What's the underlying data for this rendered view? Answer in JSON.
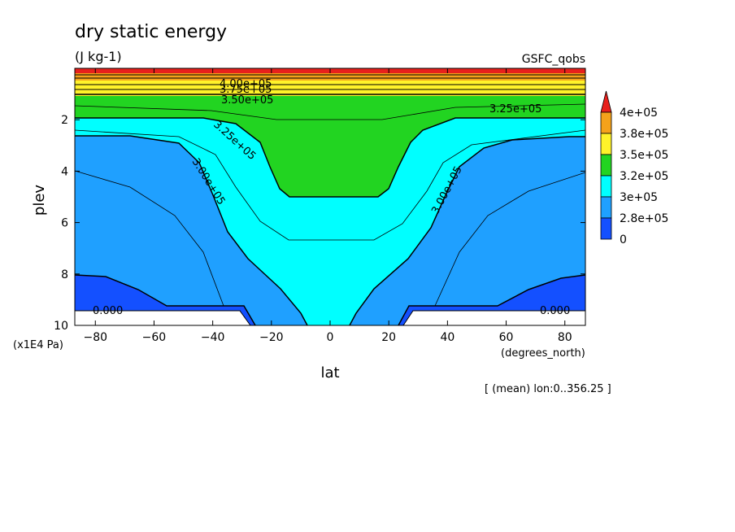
{
  "chart_data": {
    "type": "heatmap",
    "title": "dry static energy",
    "units": "(J kg-1)",
    "source": "GSFC_qobs",
    "xlabel": "lat",
    "xunits": "(degrees_north)",
    "ylabel": "plev",
    "yunits": "(x1E4 Pa)",
    "footer": "[ (mean) lon:0..356.25 ]",
    "xlim": [
      -87,
      87
    ],
    "ylim": [
      10,
      0
    ],
    "x_ticks": [
      "−80",
      "−60",
      "−40",
      "−20",
      "0",
      "20",
      "40",
      "60",
      "80"
    ],
    "x_tick_values": [
      -80,
      -60,
      -40,
      -20,
      0,
      20,
      40,
      60,
      80
    ],
    "y_ticks": [
      "2",
      "4",
      "6",
      "8",
      "10"
    ],
    "y_tick_values": [
      2,
      4,
      6,
      8,
      10
    ],
    "colorbar": {
      "labels": [
        "4e+05",
        "3.8e+05",
        "3.5e+05",
        "3.2e+05",
        "3e+05",
        "2.8e+05",
        "0"
      ],
      "colors": [
        "#e8201c",
        "#f5a21b",
        "#fff22a",
        "#22d421",
        "#00ffff",
        "#1fa0ff",
        "#1450ff"
      ]
    },
    "levels": [
      {
        "value": "below 2.8e+05",
        "color": "#1450ff"
      },
      {
        "value": "2.8e+05–3e+05",
        "color": "#1fa0ff"
      },
      {
        "value": "3e+05–3.2e+05",
        "color": "#00ffff"
      },
      {
        "value": "3.2e+05–3.5e+05",
        "color": "#22d421"
      },
      {
        "value": "3.5e+05–3.8e+05",
        "color": "#fff22a"
      },
      {
        "value": "3.8e+05–4e+05",
        "color": "#f5a21b"
      },
      {
        "value": "above 4e+05",
        "color": "#e8201c"
      }
    ],
    "contour_labels": [
      "4.00e+05",
      "3.75e+05",
      "3.50e+05",
      "3.25e+05",
      "3.25e+05",
      "3.00e+05",
      "3.00e+05",
      "0.000",
      "0.000"
    ],
    "grid": false
  }
}
